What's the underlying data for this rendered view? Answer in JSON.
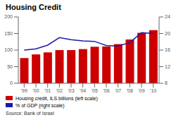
{
  "chart_data": {
    "type": "bar",
    "title": "Housing Credit",
    "categories": [
      "'99",
      "'00",
      "'01",
      "'02",
      "'03",
      "'04",
      "'05",
      "'06",
      "'07",
      "'08",
      "'09",
      "'10"
    ],
    "series": [
      {
        "name": "Housing credit, ILS billions (left scale)",
        "type": "bar",
        "color": "#cc0000",
        "values": [
          76,
          87,
          93,
          100,
          100,
          103,
          110,
          111,
          118,
          132,
          152,
          160
        ]
      },
      {
        "name": "% of GDP (right scale)",
        "type": "line",
        "color": "#1a1aaa",
        "axis": "y2",
        "values": [
          16.0,
          16.3,
          17.2,
          19.0,
          18.5,
          18.2,
          18.1,
          17.1,
          17.0,
          17.8,
          20.2,
          20.0
        ]
      }
    ],
    "ylim": [
      0,
      200
    ],
    "yticks": [
      0,
      50,
      100,
      150,
      200
    ],
    "y2lim": [
      8,
      24
    ],
    "y2ticks": [
      8,
      12,
      16,
      20,
      24
    ],
    "grid": false,
    "legend": "bottom",
    "annotations": [
      "Source: Bank of Israel"
    ]
  }
}
